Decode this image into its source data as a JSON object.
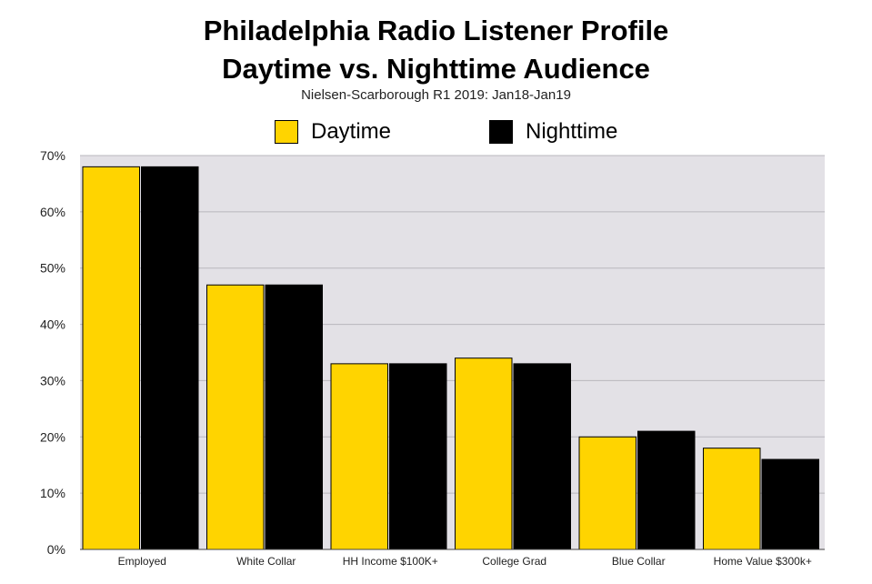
{
  "chart_data": {
    "type": "bar",
    "title": "Philadelphia Radio Listener Profile",
    "title_line2": "Daytime vs. Nighttime Audience",
    "subtitle": "Nielsen-Scarborough R1 2019: Jan18-Jan19",
    "categories": [
      "Employed",
      "White Collar",
      "HH Income $100K+",
      "College Grad",
      "Blue Collar",
      "Home Value $300k+"
    ],
    "series": [
      {
        "name": "Daytime",
        "color": "#FFD400",
        "values": [
          68,
          47,
          33,
          34,
          20,
          18
        ]
      },
      {
        "name": "Nighttime",
        "color": "#000000",
        "values": [
          68,
          47,
          33,
          33,
          21,
          16
        ]
      }
    ],
    "ylim": [
      0,
      70
    ],
    "yticks": [
      0,
      10,
      20,
      30,
      40,
      50,
      60,
      70
    ],
    "ytick_labels": [
      "0%",
      "10%",
      "20%",
      "30%",
      "40%",
      "50%",
      "60%",
      "70%"
    ],
    "grid": true,
    "legend_position": "top-center",
    "plot_background": "#E3E1E6",
    "xlabel": "",
    "ylabel": ""
  }
}
